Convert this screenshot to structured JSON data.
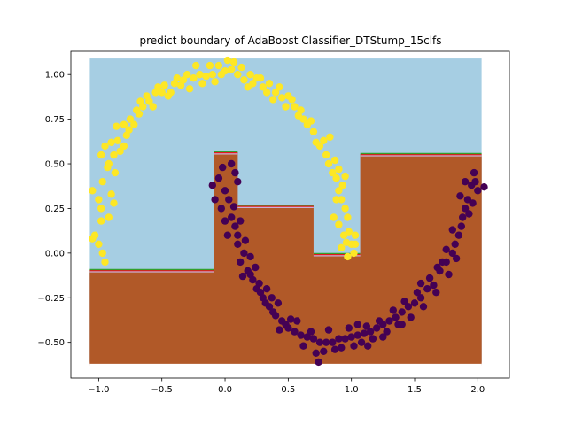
{
  "chart_data": {
    "type": "scatter",
    "title": "predict boundary of AdaBoost Classifier_DTStump_15clfs",
    "xlabel": "",
    "ylabel": "",
    "xlim": [
      -1.22,
      2.25
    ],
    "ylim": [
      -0.7,
      1.13
    ],
    "xticks": [
      -1.0,
      -0.5,
      0.0,
      0.5,
      1.0,
      1.5,
      2.0
    ],
    "xtick_labels": [
      "−1.0",
      "−0.5",
      "0.0",
      "0.5",
      "1.0",
      "1.5",
      "2.0"
    ],
    "yticks": [
      -0.5,
      -0.25,
      0.0,
      0.25,
      0.5,
      0.75,
      1.0
    ],
    "ytick_labels": [
      "−0.50",
      "−0.25",
      "0.00",
      "0.25",
      "0.50",
      "0.75",
      "1.00"
    ],
    "grid": false,
    "legend": "none",
    "decision_regions": {
      "extent_x": [
        -1.07,
        2.03
      ],
      "extent_y": [
        -0.62,
        1.09
      ],
      "colors": {
        "class_0": "#a6cee3",
        "class_1": "#b15928"
      },
      "boundary_colors": [
        "#33a02c",
        "#e31a1c",
        "#cab2d6"
      ],
      "class_1_region": [
        [
          -1.07,
          -0.1
        ],
        [
          -0.09,
          -0.1
        ],
        [
          -0.09,
          0.56
        ],
        [
          0.1,
          0.56
        ],
        [
          0.1,
          0.26
        ],
        [
          0.7,
          0.26
        ],
        [
          0.7,
          -0.01
        ],
        [
          1.07,
          -0.01
        ],
        [
          1.07,
          0.55
        ],
        [
          2.03,
          0.55
        ],
        [
          2.03,
          -0.62
        ],
        [
          -1.07,
          -0.62
        ]
      ]
    },
    "series": [
      {
        "color": "#fde725",
        "points": [
          [
            -0.98,
            0.55
          ],
          [
            -0.95,
            0.6
          ],
          [
            -0.92,
            0.5
          ],
          [
            -0.9,
            0.62
          ],
          [
            -0.88,
            0.55
          ],
          [
            -0.85,
            0.63
          ],
          [
            -0.86,
            0.71
          ],
          [
            -0.8,
            0.72
          ],
          [
            -0.78,
            0.66
          ],
          [
            -0.75,
            0.75
          ],
          [
            -0.7,
            0.8
          ],
          [
            -0.68,
            0.78
          ],
          [
            -0.65,
            0.82
          ],
          [
            -0.62,
            0.88
          ],
          [
            -0.6,
            0.85
          ],
          [
            -0.55,
            0.9
          ],
          [
            -0.5,
            0.9
          ],
          [
            -0.48,
            0.94
          ],
          [
            -0.45,
            0.88
          ],
          [
            -0.4,
            0.95
          ],
          [
            -0.38,
            0.98
          ],
          [
            -0.35,
            0.94
          ],
          [
            -0.3,
            1.0
          ],
          [
            -0.25,
            0.98
          ],
          [
            -0.2,
            1.0
          ],
          [
            -0.15,
            0.99
          ],
          [
            -0.1,
            1.0
          ],
          [
            -0.05,
            1.05
          ],
          [
            0.0,
            1.02
          ],
          [
            0.02,
            1.08
          ],
          [
            0.05,
            1.03
          ],
          [
            0.1,
            1.0
          ],
          [
            0.15,
            0.97
          ],
          [
            0.2,
            1.0
          ],
          [
            0.22,
            0.95
          ],
          [
            0.25,
            0.98
          ],
          [
            0.3,
            0.93
          ],
          [
            0.35,
            0.95
          ],
          [
            0.4,
            0.9
          ],
          [
            0.45,
            0.87
          ],
          [
            0.5,
            0.88
          ],
          [
            0.55,
            0.82
          ],
          [
            0.6,
            0.8
          ],
          [
            0.62,
            0.75
          ],
          [
            0.65,
            0.72
          ],
          [
            0.7,
            0.68
          ],
          [
            0.72,
            0.62
          ],
          [
            0.75,
            0.6
          ],
          [
            0.8,
            0.55
          ],
          [
            0.82,
            0.5
          ],
          [
            0.85,
            0.45
          ],
          [
            0.88,
            0.42
          ],
          [
            0.9,
            0.35
          ],
          [
            0.92,
            0.3
          ],
          [
            0.95,
            0.25
          ],
          [
            0.97,
            0.2
          ],
          [
            0.98,
            0.12
          ],
          [
            1.0,
            0.05
          ],
          [
            1.02,
            0.0
          ],
          [
            1.03,
            0.1
          ],
          [
            -1.05,
            0.35
          ],
          [
            -1.03,
            0.1
          ],
          [
            -1.0,
            0.05
          ],
          [
            -1.0,
            0.3
          ],
          [
            -0.98,
            0.25
          ],
          [
            -0.98,
            0.18
          ],
          [
            -1.05,
            0.08
          ],
          [
            -0.97,
            0.0
          ],
          [
            -0.95,
            -0.05
          ],
          [
            -0.97,
            0.4
          ],
          [
            -0.93,
            0.48
          ],
          [
            -0.92,
            0.2
          ],
          [
            -0.9,
            0.33
          ],
          [
            -0.88,
            0.28
          ],
          [
            -0.87,
            0.45
          ],
          [
            -0.83,
            0.57
          ],
          [
            -0.8,
            0.6
          ],
          [
            -0.76,
            0.69
          ],
          [
            -0.72,
            0.72
          ],
          [
            -0.67,
            0.85
          ],
          [
            -0.57,
            0.82
          ],
          [
            -0.53,
            0.93
          ],
          [
            -0.43,
            0.9
          ],
          [
            -0.33,
            0.97
          ],
          [
            -0.28,
            0.92
          ],
          [
            -0.23,
            1.05
          ],
          [
            -0.18,
            0.95
          ],
          [
            -0.12,
            1.05
          ],
          [
            -0.08,
            0.96
          ],
          [
            -0.03,
            1.0
          ],
          [
            0.07,
            1.07
          ],
          [
            0.13,
            1.04
          ],
          [
            0.18,
            0.93
          ],
          [
            0.28,
            0.98
          ],
          [
            0.33,
            0.9
          ],
          [
            0.38,
            0.86
          ],
          [
            0.43,
            0.93
          ],
          [
            0.48,
            0.82
          ],
          [
            0.53,
            0.86
          ],
          [
            0.58,
            0.77
          ],
          [
            0.68,
            0.74
          ],
          [
            0.78,
            0.63
          ],
          [
            0.83,
            0.65
          ],
          [
            0.87,
            0.52
          ],
          [
            0.9,
            0.47
          ],
          [
            0.93,
            0.38
          ],
          [
            0.95,
            0.43
          ],
          [
            0.88,
            0.3
          ],
          [
            0.86,
            0.2
          ],
          [
            0.9,
            0.16
          ],
          [
            0.94,
            0.1
          ],
          [
            0.96,
            0.06
          ],
          [
            0.92,
            0.03
          ],
          [
            0.97,
            -0.02
          ],
          [
            1.03,
            0.05
          ]
        ]
      },
      {
        "color": "#440154",
        "points": [
          [
            -0.1,
            0.38
          ],
          [
            -0.05,
            0.42
          ],
          [
            -0.08,
            0.3
          ],
          [
            0.0,
            0.35
          ],
          [
            0.05,
            0.5
          ],
          [
            0.08,
            0.45
          ],
          [
            0.1,
            0.4
          ],
          [
            0.05,
            0.2
          ],
          [
            0.02,
            0.1
          ],
          [
            0.08,
            0.15
          ],
          [
            0.1,
            0.05
          ],
          [
            0.12,
            -0.05
          ],
          [
            0.15,
            0.0
          ],
          [
            0.18,
            -0.1
          ],
          [
            0.2,
            -0.12
          ],
          [
            0.22,
            -0.15
          ],
          [
            0.25,
            -0.2
          ],
          [
            0.28,
            -0.22
          ],
          [
            0.3,
            -0.25
          ],
          [
            0.32,
            -0.28
          ],
          [
            0.35,
            -0.3
          ],
          [
            0.38,
            -0.33
          ],
          [
            0.4,
            -0.35
          ],
          [
            0.45,
            -0.38
          ],
          [
            0.48,
            -0.4
          ],
          [
            0.5,
            -0.42
          ],
          [
            0.55,
            -0.44
          ],
          [
            0.6,
            -0.46
          ],
          [
            0.65,
            -0.47
          ],
          [
            0.7,
            -0.48
          ],
          [
            0.75,
            -0.5
          ],
          [
            0.8,
            -0.5
          ],
          [
            0.85,
            -0.5
          ],
          [
            0.9,
            -0.48
          ],
          [
            0.95,
            -0.48
          ],
          [
            1.0,
            -0.47
          ],
          [
            1.05,
            -0.46
          ],
          [
            1.1,
            -0.45
          ],
          [
            1.15,
            -0.44
          ],
          [
            1.2,
            -0.42
          ],
          [
            1.25,
            -0.4
          ],
          [
            1.3,
            -0.38
          ],
          [
            1.35,
            -0.36
          ],
          [
            1.4,
            -0.33
          ],
          [
            1.45,
            -0.3
          ],
          [
            1.5,
            -0.28
          ],
          [
            1.55,
            -0.25
          ],
          [
            1.6,
            -0.2
          ],
          [
            1.65,
            -0.18
          ],
          [
            1.7,
            -0.1
          ],
          [
            1.75,
            -0.05
          ],
          [
            1.8,
            0.0
          ],
          [
            1.85,
            0.1
          ],
          [
            1.88,
            0.2
          ],
          [
            1.9,
            0.25
          ],
          [
            1.92,
            0.3
          ],
          [
            1.95,
            0.38
          ],
          [
            1.98,
            0.4
          ],
          [
            2.05,
            0.37
          ],
          [
            -0.02,
            0.48
          ],
          [
            0.03,
            0.3
          ],
          [
            -0.03,
            0.25
          ],
          [
            0.07,
            0.26
          ],
          [
            0.0,
            0.18
          ],
          [
            0.1,
            0.1
          ],
          [
            0.12,
            0.18
          ],
          [
            0.16,
            0.07
          ],
          [
            0.2,
            -0.02
          ],
          [
            0.14,
            -0.13
          ],
          [
            0.24,
            -0.08
          ],
          [
            0.27,
            -0.17
          ],
          [
            0.33,
            -0.2
          ],
          [
            0.37,
            -0.25
          ],
          [
            0.42,
            -0.28
          ],
          [
            0.43,
            -0.43
          ],
          [
            0.52,
            -0.37
          ],
          [
            0.57,
            -0.38
          ],
          [
            0.62,
            -0.52
          ],
          [
            0.68,
            -0.44
          ],
          [
            0.72,
            -0.56
          ],
          [
            0.74,
            -0.61
          ],
          [
            0.78,
            -0.55
          ],
          [
            0.82,
            -0.43
          ],
          [
            0.87,
            -0.54
          ],
          [
            0.92,
            -0.53
          ],
          [
            0.98,
            -0.42
          ],
          [
            1.02,
            -0.52
          ],
          [
            1.08,
            -0.5
          ],
          [
            1.12,
            -0.41
          ],
          [
            1.17,
            -0.48
          ],
          [
            1.22,
            -0.38
          ],
          [
            1.28,
            -0.44
          ],
          [
            1.33,
            -0.32
          ],
          [
            1.37,
            -0.4
          ],
          [
            1.42,
            -0.27
          ],
          [
            1.47,
            -0.36
          ],
          [
            1.52,
            -0.22
          ],
          [
            1.57,
            -0.3
          ],
          [
            1.62,
            -0.14
          ],
          [
            1.67,
            -0.22
          ],
          [
            1.72,
            -0.05
          ],
          [
            1.77,
            -0.12
          ],
          [
            1.82,
            0.05
          ],
          [
            1.83,
            -0.03
          ],
          [
            1.87,
            0.15
          ],
          [
            1.93,
            0.22
          ],
          [
            1.96,
            0.28
          ],
          [
            1.97,
            0.45
          ],
          [
            2.0,
            0.35
          ],
          [
            1.9,
            0.4
          ],
          [
            1.86,
            0.32
          ],
          [
            1.8,
            0.13
          ],
          [
            1.75,
            0.02
          ],
          [
            1.68,
            -0.08
          ],
          [
            1.55,
            -0.17
          ],
          [
            1.4,
            -0.4
          ],
          [
            1.25,
            -0.47
          ],
          [
            1.13,
            -0.52
          ],
          [
            1.05,
            -0.4
          ]
        ]
      }
    ]
  }
}
